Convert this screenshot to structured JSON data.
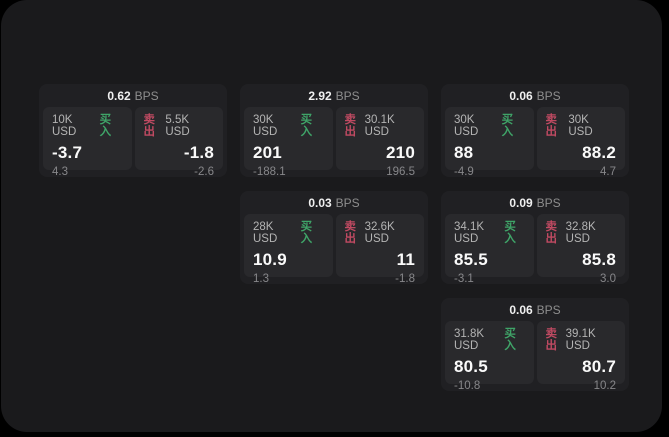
{
  "labels": {
    "bps_unit": "BPS",
    "buy": "买入",
    "sell": "卖出"
  },
  "colors": {
    "page_bg": "#000000",
    "window_bg": "#1a1a1c",
    "card_bg": "#202023",
    "panel_bg": "#29292c",
    "buy": "#3fa468",
    "sell": "#c04a62"
  },
  "cards": [
    {
      "bps": "0.62",
      "row": 0,
      "col": 0,
      "buy": {
        "amount": "10K USD",
        "value": "-3.7",
        "change": "4.3"
      },
      "sell": {
        "amount": "5.5K USD",
        "value": "-1.8",
        "change": "-2.6"
      }
    },
    {
      "bps": "2.92",
      "row": 0,
      "col": 1,
      "buy": {
        "amount": "30K USD",
        "value": "201",
        "change": "-188.1"
      },
      "sell": {
        "amount": "30.1K USD",
        "value": "210",
        "change": "196.5"
      }
    },
    {
      "bps": "0.06",
      "row": 0,
      "col": 2,
      "buy": {
        "amount": "30K USD",
        "value": "88",
        "change": "-4.9"
      },
      "sell": {
        "amount": "30K USD",
        "value": "88.2",
        "change": "4.7"
      }
    },
    {
      "bps": "0.03",
      "row": 1,
      "col": 1,
      "buy": {
        "amount": "28K USD",
        "value": "10.9",
        "change": "1.3"
      },
      "sell": {
        "amount": "32.6K USD",
        "value": "11",
        "change": "-1.8"
      }
    },
    {
      "bps": "0.09",
      "row": 1,
      "col": 2,
      "buy": {
        "amount": "34.1K USD",
        "value": "85.5",
        "change": "-3.1"
      },
      "sell": {
        "amount": "32.8K USD",
        "value": "85.8",
        "change": "3.0"
      }
    },
    {
      "bps": "0.06",
      "row": 2,
      "col": 2,
      "buy": {
        "amount": "31.8K USD",
        "value": "80.5",
        "change": "-10.8"
      },
      "sell": {
        "amount": "39.1K USD",
        "value": "80.7",
        "change": "10.2"
      }
    }
  ]
}
